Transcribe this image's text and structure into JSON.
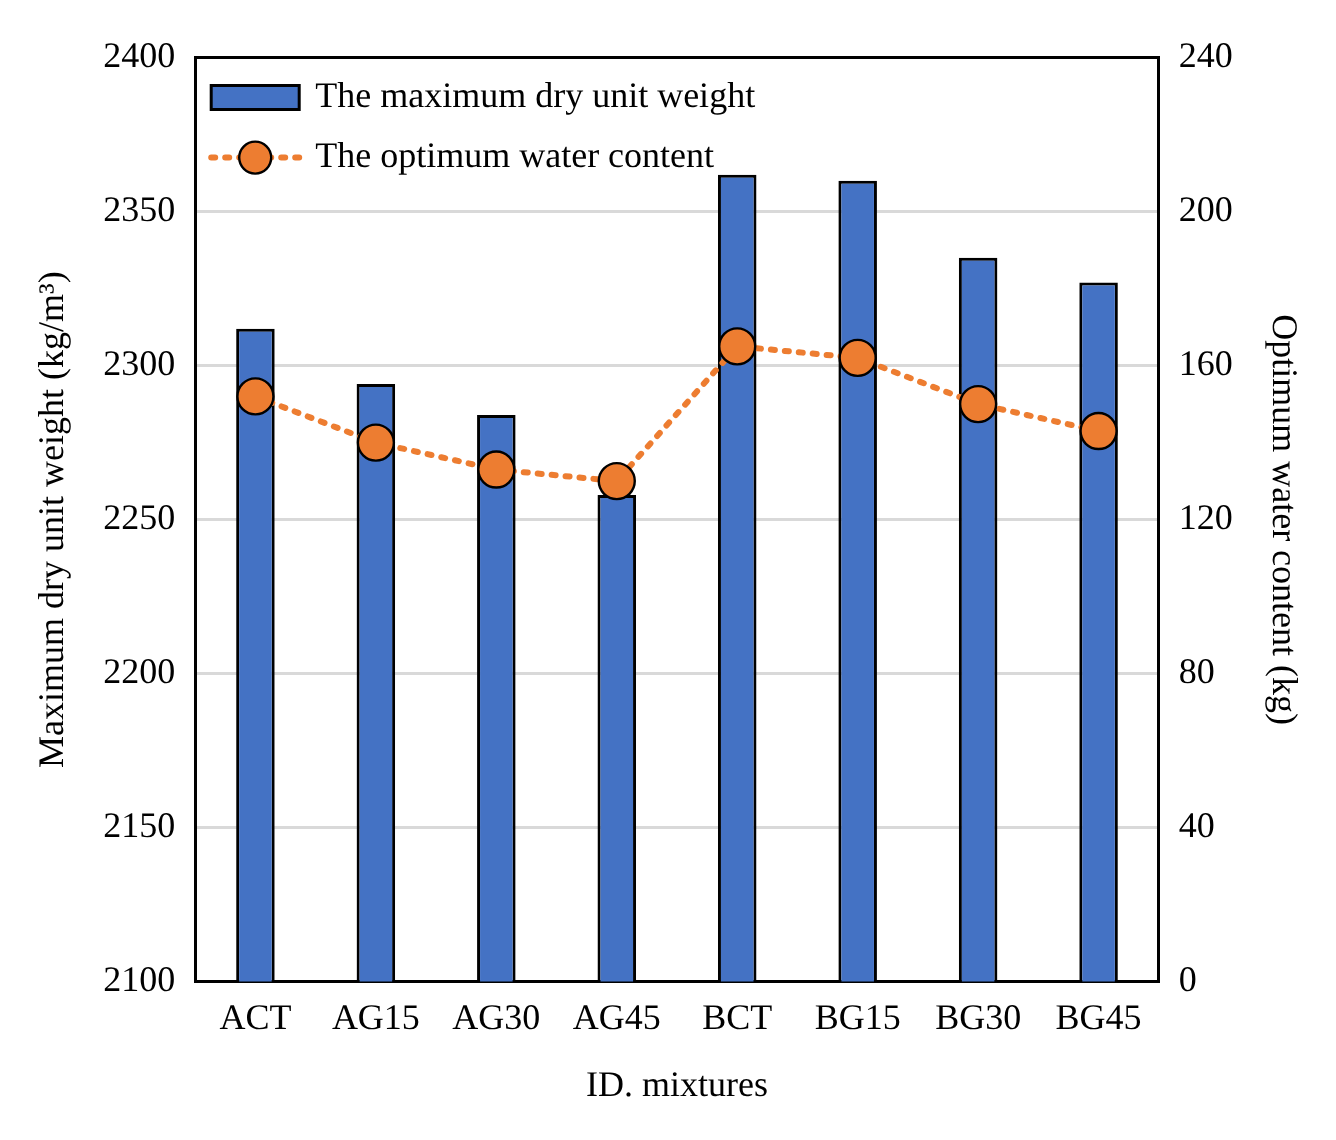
{
  "chart_data": {
    "type": "bar",
    "xlabel": "ID. mixtures",
    "ylabel": "Maximum dry unit weight (kg/m³)",
    "y2label": "Optimum water content (kg)",
    "categories": [
      "ACT",
      "AG15",
      "AG30",
      "AG45",
      "BCT",
      "BG15",
      "BG30",
      "BG45"
    ],
    "series": [
      {
        "name": "The maximum dry unit weight",
        "color": "#4472c4",
        "values": [
          2312,
          2294,
          2284,
          2258,
          2362,
          2360,
          2335,
          2327
        ]
      },
      {
        "name": "The optimum water content",
        "type": "line",
        "axis": "y2",
        "color": "#ed7d31",
        "marker": "circle",
        "line_style": "dotted",
        "values": [
          152,
          140,
          133,
          130,
          165,
          162,
          150,
          143
        ]
      }
    ],
    "ylim": [
      2100,
      2400
    ],
    "yticks": [
      2100,
      2150,
      2200,
      2250,
      2300,
      2350,
      2400
    ],
    "y2lim": [
      0,
      240
    ],
    "y2ticks": [
      0,
      40,
      80,
      120,
      160,
      200,
      240
    ],
    "grid": "y",
    "legend": "top left"
  }
}
